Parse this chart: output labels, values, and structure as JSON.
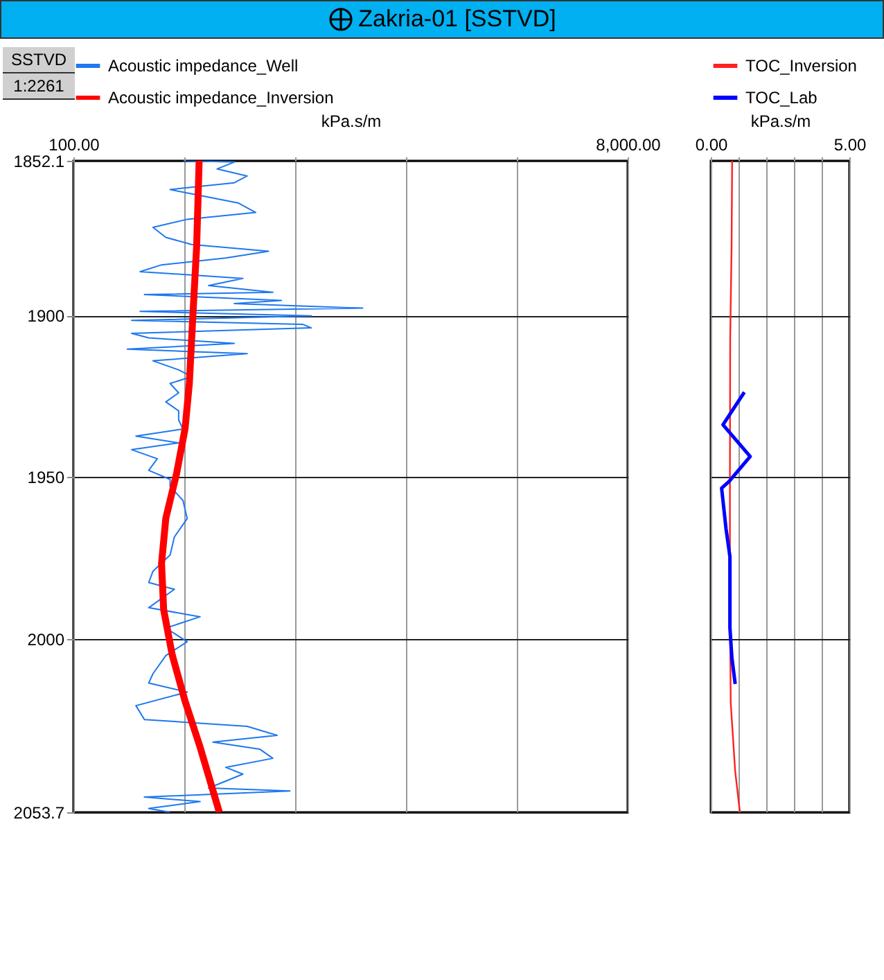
{
  "chart_data": [
    {
      "type": "line",
      "title": "Zakria-01 [SSTVD]",
      "ylabel": "SSTVD",
      "annotations": [
        "1:2261"
      ],
      "xlabel": "kPa.s/m",
      "xlim": [
        100,
        8000
      ],
      "xticks": [
        {
          "value": 100,
          "label": "100.00"
        },
        {
          "value": 1680,
          "label": null
        },
        {
          "value": 3260,
          "label": null
        },
        {
          "value": 4840,
          "label": null
        },
        {
          "value": 6420,
          "label": null
        },
        {
          "value": 8000,
          "label": "8,000.00"
        }
      ],
      "ylim": [
        2053.7,
        1852.1
      ],
      "yticks": [
        1852.1,
        1900,
        1950,
        2000,
        2053.7
      ],
      "grid": true,
      "legend": "top",
      "series": [
        {
          "name": "Acoustic impedance_Well",
          "color": "#1e78f0",
          "values": [
            1852.1,
            1852.5,
            1854.6,
            1856.8,
            1858.9,
            1861,
            1863.1,
            1865.2,
            1868.1,
            1870.2,
            1872.7,
            1875.8,
            1878,
            1880.1,
            1882.2,
            1884.3,
            1886.4,
            1888.5,
            1890.7,
            1892.8,
            1893.5,
            1895.3,
            1896.3,
            1897.7,
            1898.7,
            1900.1,
            1901.5,
            1902.7,
            1903.8,
            1905.5,
            1906.9,
            1908.6,
            1910.4,
            1911.8,
            1914,
            1916.8,
            1918.9,
            1921,
            1923.9,
            1926.7,
            1929.5,
            1932.3,
            1935.1,
            1937.3,
            1939.4,
            1941.5,
            1944.3,
            1947.9,
            1950.7,
            1952.9,
            1957.2,
            1962.8,
            1968.5,
            1974.1,
            1979.1,
            1982.6,
            1984.7,
            1990.4,
            1993.2,
            1996.7,
            2000.9,
            2005.2,
            2010.8,
            2013.7,
            2016.5,
            2020.7,
            2025,
            2027.1,
            2029.9,
            2032,
            2034.2,
            2037,
            2039.8,
            2041.9,
            2046.2,
            2047.1,
            2049,
            2050.4,
            2052.5,
            2053.7
          ],
          "x": [
            1661,
            2393,
            2149,
            2576,
            2393,
            1478,
            1966,
            2454,
            2698,
            1722,
            1234,
            1417,
            1783,
            2881,
            2271,
            1356,
            1051,
            2515,
            2027,
            2942,
            1112,
            3064,
            2393,
            4222,
            1051,
            3490,
            930,
            3368,
            3490,
            930,
            1173,
            2393,
            869,
            2576,
            1234,
            1600,
            1783,
            1478,
            1600,
            1417,
            1600,
            1600,
            1661,
            991,
            1600,
            930,
            1295,
            1173,
            1478,
            1478,
            1661,
            1722,
            1539,
            1478,
            1234,
            1173,
            1539,
            1173,
            1905,
            1417,
            1722,
            1417,
            1234,
            1173,
            1722,
            991,
            1112,
            2576,
            3003,
            2088,
            2759,
            2942,
            2271,
            2515,
            2027,
            3186,
            1112,
            1905,
            1173,
            1478
          ]
        },
        {
          "name": "Acoustic impedance_Inversion",
          "color": "#ff0000",
          "values": [
            1852.1,
            1878.7,
            1900.6,
            1921,
            1935,
            1949,
            1962.7,
            1976.7,
            1991,
            2005,
            2019.3,
            2033.5,
            2053.7
          ],
          "x": [
            1892,
            1856,
            1801,
            1752,
            1691,
            1569,
            1417,
            1356,
            1386,
            1508,
            1691,
            1905,
            2180
          ]
        }
      ]
    },
    {
      "type": "line",
      "xlabel": "kPa.s/m",
      "xlim": [
        0,
        5
      ],
      "xticks": [
        {
          "value": 0,
          "label": "0.00"
        },
        {
          "value": 1,
          "label": null
        },
        {
          "value": 2,
          "label": null
        },
        {
          "value": 3,
          "label": null
        },
        {
          "value": 4,
          "label": null
        },
        {
          "value": 5,
          "label": "5.00"
        }
      ],
      "ylim": [
        2053.7,
        1852.1
      ],
      "yticks": [
        1852.1,
        1900,
        1950,
        2000,
        2053.7
      ],
      "grid": true,
      "legend": "top",
      "tick_labels": "x",
      "series": [
        {
          "name": "TOC_Inversion",
          "color": "#ff2020",
          "values": [
            1852.1,
            1878.7,
            1906.8,
            1949,
            1991.5,
            2020,
            2041,
            2053.7
          ],
          "x": [
            0.77,
            0.75,
            0.7,
            0.69,
            0.69,
            0.72,
            0.88,
            1.05
          ]
        },
        {
          "name": "TOC_Lab",
          "color": "#0000ff",
          "values": [
            1923.7,
            1933.8,
            1943.6,
            1951.3,
            1953.4,
            1966,
            1974.6,
            1996.6,
            2005.8,
            2014
          ],
          "x": [
            1.21,
            0.44,
            1.42,
            0.66,
            0.39,
            0.55,
            0.69,
            0.69,
            0.76,
            0.88
          ]
        }
      ]
    }
  ]
}
